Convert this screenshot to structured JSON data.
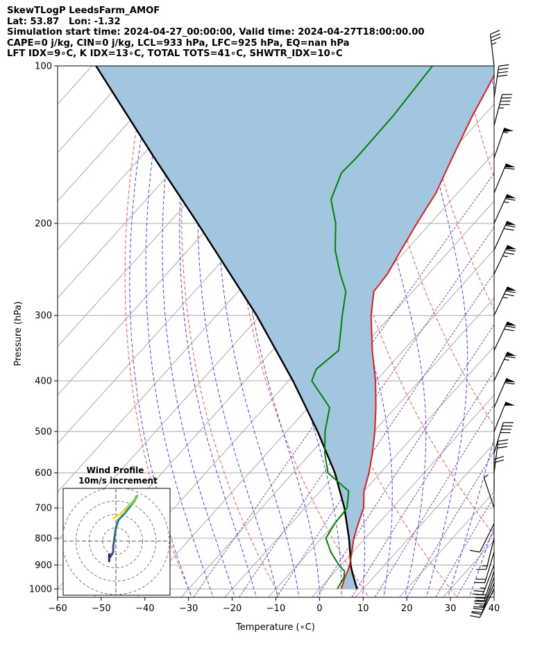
{
  "header": {
    "line1": "SkewTLogP LeedsFarm_AMOF",
    "line2": "Lat: 53.87   Lon: -1.32",
    "line3": "Simulation start time: 2024-04-27_00:00:00, Valid time: 2024-04-27T18:00:00.00",
    "line4": "CAPE=0 j/kg, CIN=0 j/kg, LCL=933 hPa, LFC=925 hPa, EQ=nan hPa",
    "line5": "LFT IDX=9∘C, K IDX=13∘C, TOTAL TOTS=41∘C, SHWTR_IDX=10∘C"
  },
  "chart_data": {
    "type": "line",
    "xlabel": "Temperature (∘C)",
    "ylabel": "Pressure (hPa)",
    "xlim": [
      -60,
      40
    ],
    "ylim": [
      1050,
      100
    ],
    "yscale": "log",
    "skew": true,
    "grid": true,
    "xticks": [
      -60,
      -50,
      -40,
      -30,
      -20,
      -10,
      0,
      10,
      20,
      30,
      40
    ],
    "xtick_labels": [
      "−60",
      "−50",
      "−40",
      "−30",
      "−20",
      "−10",
      "0",
      "10",
      "20",
      "30",
      "40"
    ],
    "yticks": [
      1000,
      900,
      800,
      700,
      600,
      500,
      400,
      300,
      200,
      100
    ],
    "ytick_labels": [
      "1000",
      "900",
      "800",
      "700",
      "600",
      "500",
      "400",
      "300",
      "200",
      "100"
    ],
    "series": [
      {
        "role": "temperature",
        "color": "#e41a1c",
        "pressure": [
          1000,
          950,
          925,
          900,
          850,
          800,
          750,
          700,
          650,
          600,
          550,
          500,
          450,
          400,
          350,
          300,
          270,
          250,
          225,
          200,
          175,
          150,
          125,
          100
        ],
        "values": [
          5.0,
          3.4,
          2.8,
          2.0,
          -0.2,
          -2.6,
          -4.6,
          -6.6,
          -10.0,
          -12.6,
          -15.9,
          -19.8,
          -24.5,
          -30.1,
          -37.1,
          -44.6,
          -48.9,
          -49.4,
          -51.2,
          -53.1,
          -55.0,
          -58.5,
          -62.5,
          -66.7
        ]
      },
      {
        "role": "dewpoint",
        "color": "#008000",
        "pressure": [
          1000,
          950,
          925,
          900,
          850,
          800,
          750,
          700,
          650,
          600,
          550,
          500,
          450,
          400,
          380,
          350,
          320,
          300,
          270,
          250,
          225,
          200,
          180,
          160,
          150,
          125,
          100
        ],
        "values": [
          4.1,
          3.2,
          2.1,
          -0.5,
          -5.0,
          -9.0,
          -10.0,
          -10.4,
          -13.5,
          -22.0,
          -26.8,
          -31.2,
          -35.1,
          -44.7,
          -46.1,
          -44.8,
          -48.5,
          -51.2,
          -55.3,
          -60.2,
          -66.3,
          -71.7,
          -77.7,
          -80.8,
          -80.5,
          -80.7,
          -82.0
        ]
      },
      {
        "role": "parcel",
        "color": "#000000",
        "pressure": [
          1000,
          933,
          900,
          850,
          800,
          700,
          600,
          500,
          400,
          300,
          200,
          150,
          100
        ],
        "values": [
          8.6,
          4.3,
          2.2,
          -0.6,
          -3.7,
          -11.0,
          -20.4,
          -32.9,
          -49.0,
          -70.8,
          -103.3,
          -126.7,
          -159.1
        ]
      }
    ],
    "shading": {
      "label": "",
      "color": "#a3c6e0"
    },
    "wind_barbs": {
      "pressure": [
        1000,
        975,
        950,
        925,
        900,
        850,
        800,
        750,
        700,
        650,
        600,
        550,
        500,
        450,
        400,
        350,
        300,
        250,
        225,
        200,
        175,
        150,
        130,
        115,
        100
      ],
      "u": [
        -5,
        -5,
        -5,
        -5,
        -5,
        -3,
        -2,
        -2,
        -1,
        0,
        2,
        6,
        10,
        12,
        14,
        15,
        16,
        16,
        15,
        14,
        12,
        9,
        6,
        3,
        -2
      ],
      "v": [
        -10,
        -12,
        -14,
        -15,
        -13,
        -10,
        -8,
        -4,
        3,
        10,
        16,
        20,
        25,
        28,
        30,
        32,
        34,
        34,
        33,
        31,
        29,
        26,
        23,
        20,
        17
      ]
    },
    "hodograph": {
      "title": "Wind Profile",
      "subtitle": "10m/s increment",
      "rings": [
        10,
        20,
        30,
        40
      ],
      "range": [
        -40,
        40
      ]
    }
  }
}
